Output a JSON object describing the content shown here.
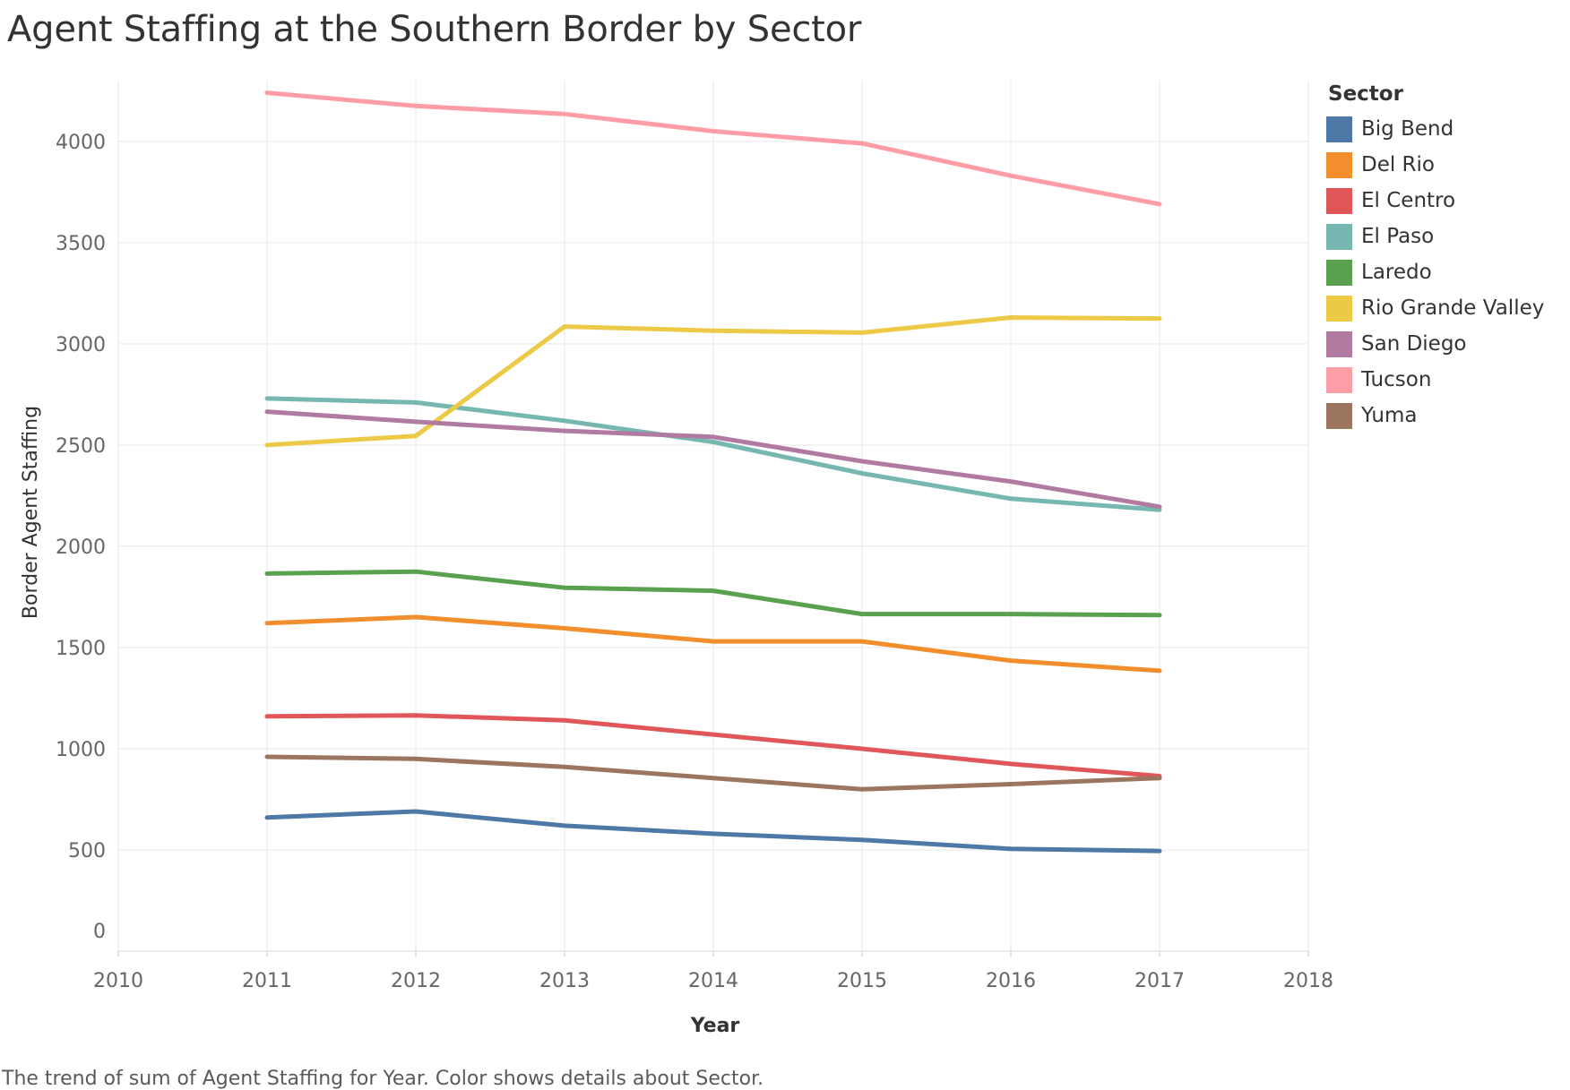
{
  "title": "Agent Staffing at the Southern Border by Sector",
  "caption": "The trend of sum of Agent Staffing for Year.  Color shows details about Sector.",
  "legend": {
    "title": "Sector"
  },
  "chart_data": {
    "type": "line",
    "title": "Agent Staffing at the Southern Border by Sector",
    "xlabel": "Year",
    "ylabel": "Border Agent Staffing",
    "x": [
      2011,
      2012,
      2013,
      2014,
      2015,
      2016,
      2017
    ],
    "xlim": [
      2010,
      2018
    ],
    "ylim": [
      0,
      4300
    ],
    "x_ticks": [
      "2010",
      "2011",
      "2012",
      "2013",
      "2014",
      "2015",
      "2016",
      "2017",
      "2018"
    ],
    "y_ticks": [
      "0",
      "500",
      "1000",
      "1500",
      "2000",
      "2500",
      "3000",
      "3500",
      "4000"
    ],
    "grid": true,
    "legend_position": "right",
    "series": [
      {
        "name": "Big Bend",
        "color": "#4e79a7",
        "values": [
          660,
          690,
          620,
          580,
          550,
          505,
          495
        ]
      },
      {
        "name": "Del Rio",
        "color": "#f28e2b",
        "values": [
          1620,
          1650,
          1595,
          1530,
          1530,
          1435,
          1385
        ]
      },
      {
        "name": "El Centro",
        "color": "#e15759",
        "values": [
          1160,
          1165,
          1140,
          1070,
          1000,
          925,
          865
        ]
      },
      {
        "name": "El Paso",
        "color": "#76b7b2",
        "values": [
          2730,
          2710,
          2620,
          2515,
          2360,
          2235,
          2180
        ]
      },
      {
        "name": "Laredo",
        "color": "#59a14f",
        "values": [
          1865,
          1875,
          1795,
          1780,
          1665,
          1665,
          1660
        ]
      },
      {
        "name": "Rio Grande Valley",
        "color": "#edc948",
        "values": [
          2500,
          2545,
          3085,
          3065,
          3055,
          3130,
          3125
        ]
      },
      {
        "name": "San Diego",
        "color": "#b07aa1",
        "values": [
          2665,
          2615,
          2570,
          2540,
          2420,
          2320,
          2195
        ]
      },
      {
        "name": "Tucson",
        "color": "#ff9da7",
        "values": [
          4240,
          4175,
          4135,
          4050,
          3990,
          3830,
          3690
        ]
      },
      {
        "name": "Yuma",
        "color": "#9c755f",
        "values": [
          960,
          950,
          910,
          855,
          800,
          825,
          855
        ]
      }
    ]
  }
}
